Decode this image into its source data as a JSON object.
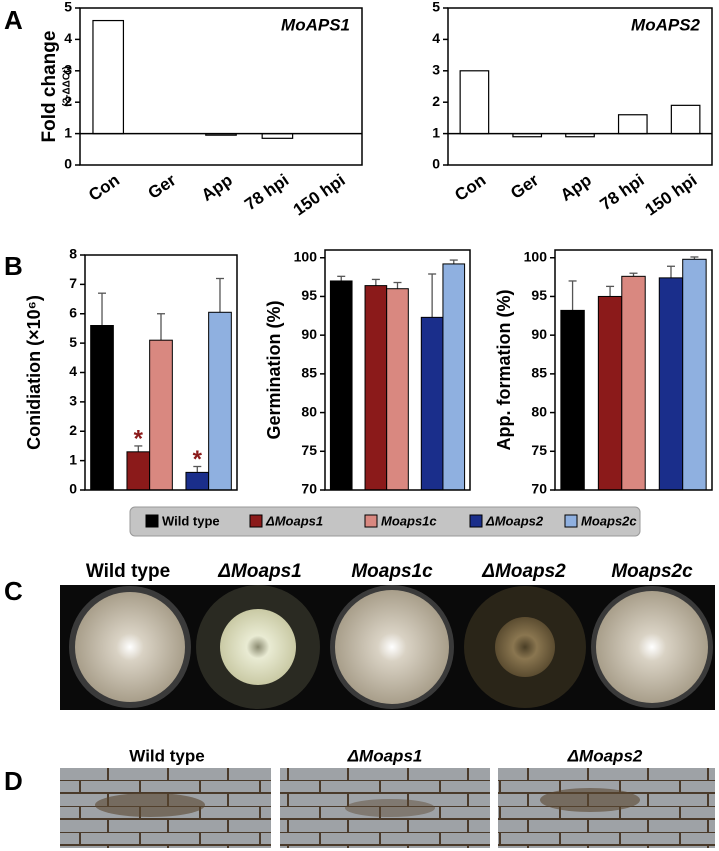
{
  "panel_labels": [
    "A",
    "B",
    "C",
    "D"
  ],
  "chart_data": [
    {
      "type": "bar",
      "title": "MoAPS1",
      "ylabel": "Fold change",
      "ylabel_sub": "(2-ΔΔCt)",
      "categories": [
        "Con",
        "Ger",
        "App",
        "78 hpi",
        "150 hpi"
      ],
      "values": [
        4.6,
        1.0,
        0.95,
        0.85,
        1.0
      ],
      "color": "#ffffff",
      "baseline": 1,
      "ylim": [
        0,
        5
      ],
      "yticks": [
        0,
        1,
        2,
        3,
        4,
        5
      ]
    },
    {
      "type": "bar",
      "title": "MoAPS2",
      "categories": [
        "Con",
        "Ger",
        "App",
        "78 hpi",
        "150 hpi"
      ],
      "values": [
        3.0,
        0.9,
        0.9,
        1.6,
        1.9
      ],
      "color": "#ffffff",
      "baseline": 1,
      "ylim": [
        0,
        5
      ],
      "yticks": [
        0,
        1,
        2,
        3,
        4,
        5
      ]
    },
    {
      "type": "bar_error",
      "ylabel": "Conidiation (×10⁶)",
      "values": [
        5.6,
        1.3,
        5.1,
        0.6,
        6.05
      ],
      "errors": [
        1.1,
        0.2,
        0.9,
        0.2,
        1.15
      ],
      "ylim": [
        0,
        8
      ],
      "yticks": [
        0,
        1,
        2,
        3,
        4,
        5,
        6,
        7,
        8
      ],
      "significant": [
        false,
        true,
        false,
        true,
        false
      ],
      "significance_label": "*",
      "significance_color": "#8b1a1a"
    },
    {
      "type": "bar_error",
      "ylabel": "Germination (%)",
      "values": [
        97,
        96.4,
        96,
        92.3,
        99.2
      ],
      "errors": [
        0.6,
        0.8,
        0.8,
        5.6,
        0.5
      ],
      "ylim": [
        70,
        101
      ],
      "yticks": [
        70,
        75,
        80,
        85,
        90,
        95,
        100
      ]
    },
    {
      "type": "bar_error",
      "ylabel": "App. formation (%)",
      "values": [
        93.2,
        95,
        97.6,
        97.4,
        99.8
      ],
      "errors": [
        3.8,
        1.3,
        0.4,
        1.5,
        0.3
      ],
      "ylim": [
        70,
        101
      ],
      "yticks": [
        70,
        75,
        80,
        85,
        90,
        95,
        100
      ]
    }
  ],
  "legend": [
    {
      "name": "Wild type",
      "color": "#000000"
    },
    {
      "name": "ΔMoaps1",
      "color": "#8b1a1a"
    },
    {
      "name": "Moaps1c",
      "color": "#d98880"
    },
    {
      "name": "ΔMoaps2",
      "color": "#1a2e8b"
    },
    {
      "name": "Moaps2c",
      "color": "#8fb0e0"
    }
  ]
}
